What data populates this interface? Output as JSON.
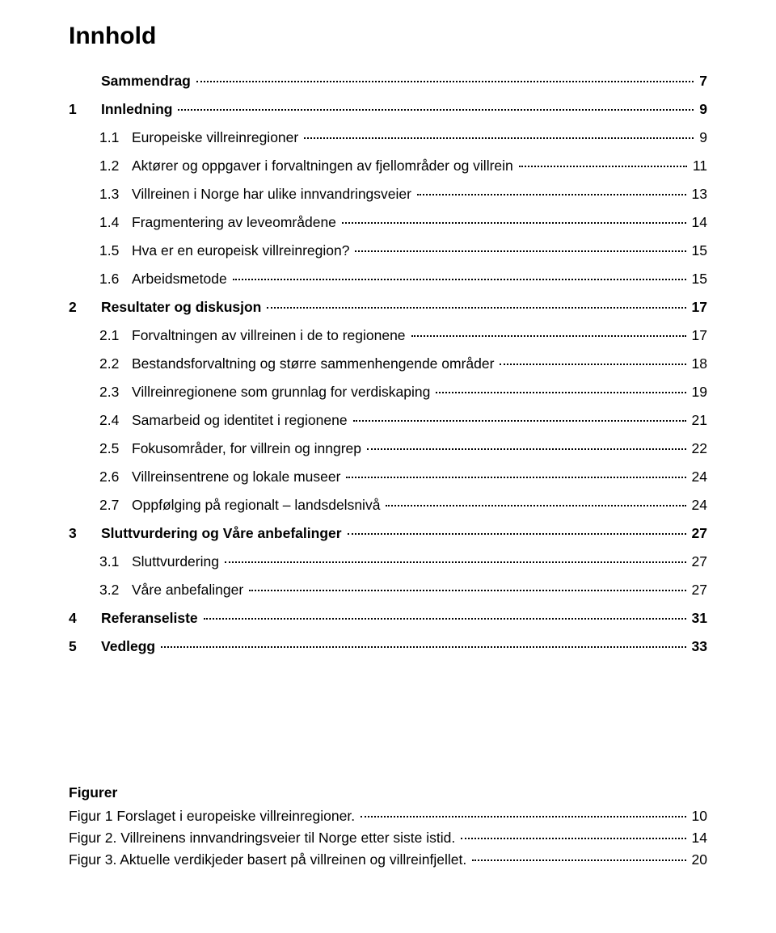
{
  "title": "Innhold",
  "toc": [
    {
      "num": "",
      "text": "Sammendrag",
      "page": "7",
      "level": 1,
      "bold": true
    },
    {
      "num": "1",
      "text": "Innledning",
      "page": "9",
      "level": 1,
      "bold": true
    },
    {
      "num": "1.1",
      "text": "Europeiske villreinregioner",
      "page": "9",
      "level": 2,
      "bold": false
    },
    {
      "num": "1.2",
      "text": "Aktører og oppgaver i forvaltningen av fjellområder og villrein",
      "page": "11",
      "level": 2,
      "bold": false
    },
    {
      "num": "1.3",
      "text": "Villreinen i Norge har ulike innvandringsveier",
      "page": "13",
      "level": 2,
      "bold": false
    },
    {
      "num": "1.4",
      "text": "Fragmentering av leveområdene",
      "page": "14",
      "level": 2,
      "bold": false
    },
    {
      "num": "1.5",
      "text": "Hva er en europeisk villreinregion?",
      "page": "15",
      "level": 2,
      "bold": false
    },
    {
      "num": "1.6",
      "text": "Arbeidsmetode",
      "page": "15",
      "level": 2,
      "bold": false
    },
    {
      "num": "2",
      "text": "Resultater og diskusjon",
      "page": "17",
      "level": 1,
      "bold": true
    },
    {
      "num": "2.1",
      "text": "Forvaltningen av villreinen i de to regionene",
      "page": "17",
      "level": 2,
      "bold": false
    },
    {
      "num": "2.2",
      "text": "Bestandsforvaltning og større sammenhengende områder",
      "page": "18",
      "level": 2,
      "bold": false
    },
    {
      "num": "2.3",
      "text": "Villreinregionene som grunnlag for verdiskaping",
      "page": "19",
      "level": 2,
      "bold": false
    },
    {
      "num": "2.4",
      "text": "Samarbeid og identitet i regionene",
      "page": "21",
      "level": 2,
      "bold": false
    },
    {
      "num": "2.5",
      "text": "Fokusområder, for villrein og inngrep",
      "page": "22",
      "level": 2,
      "bold": false
    },
    {
      "num": "2.6",
      "text": "Villreinsentrene og lokale museer",
      "page": "24",
      "level": 2,
      "bold": false
    },
    {
      "num": "2.7",
      "text": "Oppfølging på regionalt – landsdelsnivå",
      "page": "24",
      "level": 2,
      "bold": false
    },
    {
      "num": "3",
      "text": "Sluttvurdering og Våre anbefalinger",
      "page": "27",
      "level": 1,
      "bold": true
    },
    {
      "num": "3.1",
      "text": "Sluttvurdering",
      "page": "27",
      "level": 2,
      "bold": false
    },
    {
      "num": "3.2",
      "text": "Våre anbefalinger",
      "page": "27",
      "level": 2,
      "bold": false
    },
    {
      "num": "4",
      "text": "Referanseliste",
      "page": "31",
      "level": 1,
      "bold": true
    },
    {
      "num": "5",
      "text": "Vedlegg",
      "page": "33",
      "level": 1,
      "bold": true
    }
  ],
  "figures_heading": "Figurer",
  "figures": [
    {
      "text": "Figur 1 Forslaget i europeiske villreinregioner.",
      "page": "10"
    },
    {
      "text": "Figur 2. Villreinens innvandringsveier til Norge etter siste istid.",
      "page": "14"
    },
    {
      "text": "Figur 3. Aktuelle verdikjeder basert på villreinen og villreinfjellet.",
      "page": "20"
    }
  ]
}
